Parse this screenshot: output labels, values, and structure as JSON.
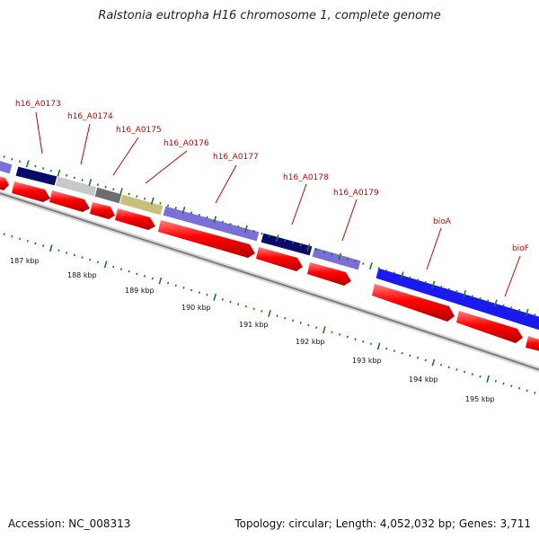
{
  "title": "Ralstonia eutropha H16 chromosome 1, complete genome",
  "footer": {
    "accession": "Accession: NC_008313",
    "summary": "Topology: circular; Length: 4,052,032 bp; Genes: 3,711"
  },
  "kbp_labels": [
    "187 kbp",
    "188 kbp",
    "189 kbp",
    "190 kbp",
    "191 kbp",
    "192 kbp",
    "193 kbp",
    "194 kbp",
    "195 kbp"
  ],
  "gene_labels": [
    "h16_A0173",
    "h16_A0174",
    "h16_A0175",
    "h16_A0176",
    "h16_A0177",
    "h16_A0178",
    "h16_A0179",
    "bioA",
    "bioF"
  ],
  "colors": {
    "cds": "#ff0000",
    "navy": "#0a0a6e",
    "purple": "#7b70d8",
    "grey_light": "#c8c8c8",
    "grey_dark": "#6e6e6e",
    "olive": "#c8c07a",
    "blue": "#1a1aee",
    "tick_green": "#1f7a1f",
    "backbone": "#8a8a8a"
  }
}
